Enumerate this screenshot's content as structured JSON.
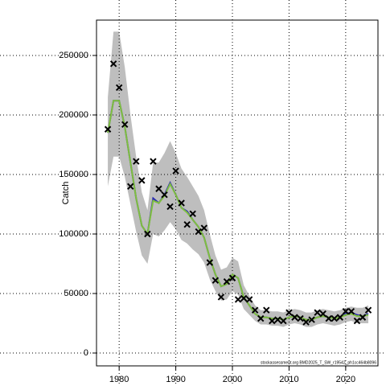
{
  "chart_data": {
    "type": "line",
    "y_label": "Catch",
    "footnote": "stockassessment.org BMD2025_T_SW_r19542_ph1cc464b8096",
    "x": [
      1978,
      1979,
      1980,
      1981,
      1982,
      1983,
      1984,
      1985,
      1986,
      1987,
      1988,
      1989,
      1990,
      1991,
      1992,
      1993,
      1994,
      1995,
      1996,
      1997,
      1998,
      1999,
      2000,
      2001,
      2002,
      2003,
      2004,
      2005,
      2006,
      2007,
      2008,
      2009,
      2010,
      2011,
      2012,
      2013,
      2014,
      2015,
      2016,
      2017,
      2018,
      2019,
      2020,
      2021,
      2022,
      2023,
      2024
    ],
    "band": {
      "color": "#bebebe",
      "upper": [
        215000,
        270000,
        270000,
        240000,
        200000,
        165000,
        135000,
        120000,
        160000,
        160000,
        168000,
        178000,
        168000,
        155000,
        148000,
        140000,
        132000,
        120000,
        100000,
        82000,
        70000,
        72000,
        80000,
        77000,
        57000,
        48000,
        40000,
        36000,
        36000,
        35000,
        35000,
        34000,
        36000,
        37000,
        36000,
        34000,
        34000,
        36000,
        37000,
        36000,
        35000,
        36000,
        38000,
        39000,
        38000,
        38000,
        40000
      ],
      "lower": [
        140000,
        165000,
        165000,
        148000,
        125000,
        102000,
        82000,
        75000,
        100000,
        98000,
        103000,
        110000,
        104000,
        95000,
        92000,
        87000,
        83000,
        76000,
        62000,
        52000,
        44000,
        45000,
        52000,
        49000,
        37000,
        32000,
        27000,
        24000,
        24000,
        23000,
        23000,
        22000,
        24000,
        25000,
        24000,
        22000,
        22000,
        24000,
        25000,
        24000,
        23000,
        24000,
        26000,
        27000,
        25000,
        25000,
        25000
      ]
    },
    "series": [
      {
        "color": "#2b2bb0",
        "values": [
          185000,
          212000,
          212000,
          190000,
          160000,
          130000,
          107000,
          100000,
          130000,
          126000,
          133000,
          143000,
          133000,
          122000,
          119000,
          112000,
          106000,
          97000,
          80000,
          66000,
          56000,
          58000,
          66000,
          63000,
          47000,
          40000,
          33000,
          30000,
          30000,
          29000,
          29000,
          28000,
          30000,
          31000,
          30000,
          28000,
          28000,
          30000,
          31000,
          30000,
          29000,
          30000,
          33000,
          34000,
          32000,
          31000,
          33000
        ]
      },
      {
        "color": "#7fbf3f",
        "values": [
          185000,
          212000,
          212000,
          190000,
          160000,
          130000,
          107000,
          100000,
          128000,
          126000,
          132000,
          142000,
          133000,
          122000,
          118000,
          112000,
          106000,
          97000,
          80000,
          66000,
          56000,
          58000,
          66000,
          63000,
          47000,
          40000,
          33000,
          30000,
          30000,
          29000,
          29000,
          28000,
          30000,
          31000,
          30000,
          28000,
          28000,
          30000,
          31000,
          30000,
          29000,
          30000,
          32000,
          33000,
          31000,
          31000,
          32000
        ]
      }
    ],
    "observed": {
      "color": "#000000",
      "values": [
        188000,
        243000,
        223000,
        192000,
        140000,
        161000,
        145000,
        100000,
        161000,
        138000,
        133000,
        123000,
        153000,
        126000,
        108000,
        117000,
        102000,
        105000,
        76000,
        61000,
        47000,
        60000,
        63000,
        45000,
        46000,
        45000,
        36000,
        29000,
        36000,
        27000,
        28000,
        27000,
        34000,
        30000,
        29000,
        26000,
        28000,
        34000,
        33000,
        29000,
        29000,
        30000,
        35000,
        35000,
        27000,
        30000,
        36000
      ]
    },
    "xlim": [
      1976,
      2025.7
    ],
    "ylim": [
      -10800,
      279700
    ],
    "xticks": [
      1980,
      1990,
      2000,
      2010,
      2020
    ],
    "yticks": [
      0,
      50000,
      100000,
      150000,
      200000,
      250000
    ],
    "grid": true
  }
}
